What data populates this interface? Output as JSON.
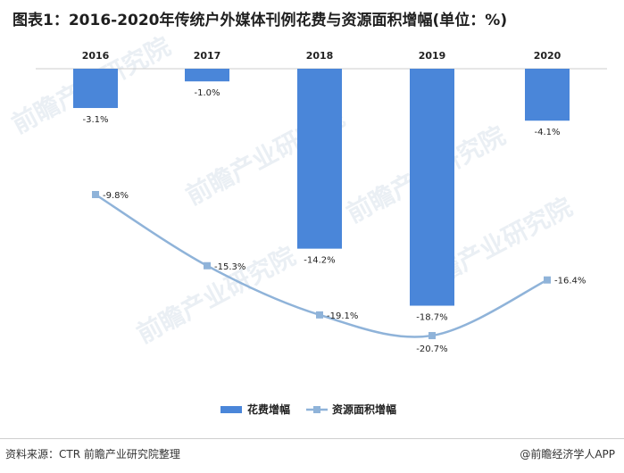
{
  "title": "图表1：2016-2020年传统户外媒体刊例花费与资源面积增幅(单位：%)",
  "source": "资料来源：CTR 前瞻产业研究院整理",
  "brand": "@前瞻经济学人APP",
  "watermark": "前瞻产业研究院",
  "colors": {
    "bar": "#4a86d9",
    "line": "#8fb3d9",
    "marker": "#8fb3d9"
  },
  "chart_data": {
    "type": "bar",
    "categories": [
      "2016",
      "2017",
      "2018",
      "2019",
      "2020"
    ],
    "series": [
      {
        "name": "花费增幅",
        "type": "bar",
        "values": [
          -3.1,
          -1.0,
          -14.2,
          -18.7,
          -4.1
        ],
        "labels": [
          "-3.1%",
          "-1.0%",
          "-14.2%",
          "-18.7%",
          "-4.1%"
        ]
      },
      {
        "name": "资源面积增幅",
        "type": "line",
        "values": [
          -9.8,
          -15.3,
          -19.1,
          -20.7,
          -16.4
        ],
        "labels": [
          "-9.8%",
          "-15.3%",
          "-19.1%",
          "-20.7%",
          "-16.4%"
        ]
      }
    ],
    "legend_position": "bottom"
  }
}
